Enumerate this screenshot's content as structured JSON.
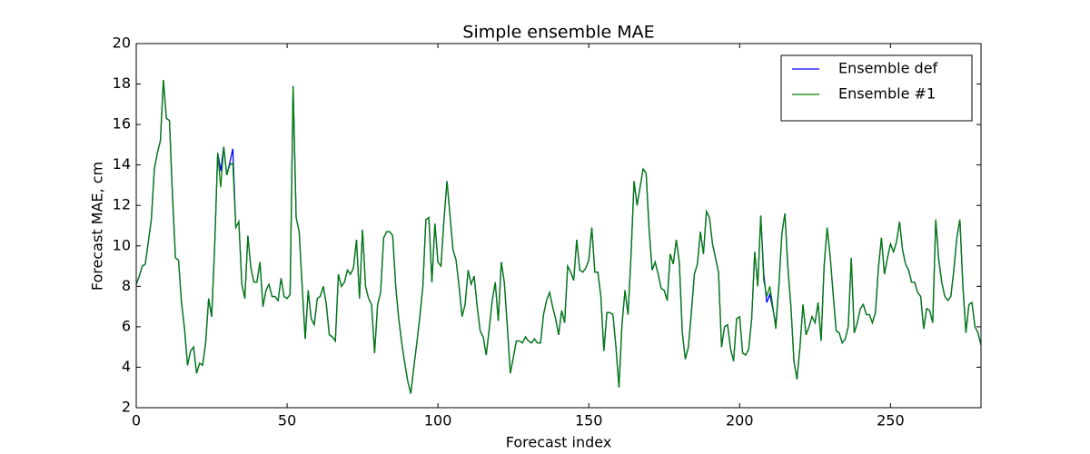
{
  "chart_data": {
    "type": "line",
    "title": "Simple ensemble MAE",
    "xlabel": "Forecast index",
    "ylabel": "Forecast MAE, cm",
    "x": [
      0,
      1,
      2,
      3,
      4,
      5,
      6,
      7,
      8,
      9,
      10,
      11,
      12,
      13,
      14,
      15,
      16,
      17,
      18,
      19,
      20,
      21,
      22,
      23,
      24,
      25,
      26,
      27,
      28,
      29,
      30,
      31,
      32,
      33,
      34,
      35,
      36,
      37,
      38,
      39,
      40,
      41,
      42,
      43,
      44,
      45,
      46,
      47,
      48,
      49,
      50,
      51,
      52,
      53,
      54,
      55,
      56,
      57,
      58,
      59,
      60,
      61,
      62,
      63,
      64,
      65,
      66,
      67,
      68,
      69,
      70,
      71,
      72,
      73,
      74,
      75,
      76,
      77,
      78,
      79,
      80,
      81,
      82,
      83,
      84,
      85,
      86,
      87,
      88,
      89,
      90,
      91,
      92,
      93,
      94,
      95,
      96,
      97,
      98,
      99,
      100,
      101,
      102,
      103,
      104,
      105,
      106,
      107,
      108,
      109,
      110,
      111,
      112,
      113,
      114,
      115,
      116,
      117,
      118,
      119,
      120,
      121,
      122,
      123,
      124,
      125,
      126,
      127,
      128,
      129,
      130,
      131,
      132,
      133,
      134,
      135,
      136,
      137,
      138,
      139,
      140,
      141,
      142,
      143,
      144,
      145,
      146,
      147,
      148,
      149,
      150,
      151,
      152,
      153,
      154,
      155,
      156,
      157,
      158,
      159,
      160,
      161,
      162,
      163,
      164,
      165,
      166,
      167,
      168,
      169,
      170,
      171,
      172,
      173,
      174,
      175,
      176,
      177,
      178,
      179,
      180,
      181,
      182,
      183,
      184,
      185,
      186,
      187,
      188,
      189,
      190,
      191,
      192,
      193,
      194,
      195,
      196,
      197,
      198,
      199,
      200,
      201,
      202,
      203,
      204,
      205,
      206,
      207,
      208,
      209,
      210,
      211,
      212,
      213,
      214,
      215,
      216,
      217,
      218,
      219,
      220,
      221,
      222,
      223,
      224,
      225,
      226,
      227,
      228,
      229,
      230,
      231,
      232,
      233,
      234,
      235,
      236,
      237,
      238,
      239,
      240,
      241,
      242,
      243,
      244,
      245,
      246,
      247,
      248,
      249,
      250,
      251,
      252,
      253,
      254,
      255,
      256,
      257,
      258,
      259,
      260,
      261,
      262,
      263,
      264,
      265,
      266,
      267,
      268,
      269,
      270,
      271,
      272,
      273,
      274,
      275,
      276,
      277,
      278,
      279,
      280
    ],
    "series": [
      {
        "name": "Ensemble def",
        "color": "#0000ff",
        "values": [
          8.1,
          8.5,
          9.0,
          9.1,
          10.2,
          11.3,
          13.8,
          14.6,
          15.2,
          18.2,
          16.3,
          16.2,
          12.5,
          9.4,
          9.3,
          7.2,
          5.9,
          4.1,
          4.8,
          5.0,
          3.7,
          4.2,
          4.1,
          5.2,
          7.4,
          6.5,
          10.0,
          14.6,
          13.7,
          14.9,
          13.5,
          14.1,
          14.8,
          10.9,
          11.2,
          8.1,
          7.4,
          10.5,
          8.9,
          8.2,
          8.2,
          9.2,
          7.0,
          7.8,
          8.1,
          7.5,
          7.5,
          7.3,
          8.4,
          7.5,
          7.4,
          7.6,
          17.9,
          11.4,
          10.7,
          8.0,
          5.4,
          7.8,
          6.4,
          6.1,
          7.4,
          7.5,
          8.0,
          7.1,
          5.6,
          5.5,
          5.3,
          8.6,
          8.0,
          8.2,
          8.8,
          8.6,
          8.9,
          10.3,
          7.4,
          10.8,
          8.0,
          7.4,
          7.1,
          4.7,
          7.1,
          7.7,
          10.4,
          10.7,
          10.7,
          10.5,
          8.0,
          6.4,
          5.2,
          4.2,
          3.3,
          2.7,
          4.0,
          5.2,
          6.5,
          8.0,
          11.3,
          11.4,
          8.2,
          11.1,
          9.2,
          9.0,
          11.3,
          13.2,
          11.5,
          9.8,
          9.3,
          8.0,
          6.5,
          7.1,
          8.8,
          8.1,
          8.5,
          7.0,
          5.8,
          5.5,
          4.6,
          5.9,
          7.3,
          8.2,
          6.3,
          9.2,
          8.2,
          6.0,
          3.7,
          4.5,
          5.3,
          5.3,
          5.2,
          5.5,
          5.3,
          5.2,
          5.4,
          5.2,
          5.2,
          6.6,
          7.3,
          7.7,
          7.0,
          6.4,
          5.6,
          6.8,
          6.2,
          9.0,
          8.7,
          8.3,
          10.3,
          8.8,
          8.7,
          8.9,
          9.3,
          10.9,
          8.7,
          8.7,
          7.5,
          4.8,
          6.7,
          6.7,
          6.6,
          5.0,
          3.0,
          6.1,
          7.8,
          6.6,
          9.5,
          13.2,
          12.0,
          12.9,
          13.8,
          13.6,
          10.8,
          8.8,
          9.2,
          8.6,
          7.9,
          7.8,
          7.3,
          9.6,
          9.1,
          10.3,
          9.2,
          5.7,
          4.4,
          5.0,
          6.7,
          8.6,
          9.1,
          10.7,
          9.6,
          11.7,
          11.4,
          10.1,
          9.4,
          8.7,
          5.0,
          6.0,
          6.1,
          4.9,
          4.3,
          6.4,
          6.5,
          4.7,
          4.6,
          4.9,
          6.4,
          9.7,
          8.0,
          11.5,
          8.6,
          7.2,
          7.6,
          6.9,
          6.1,
          8.0,
          10.6,
          11.6,
          8.9,
          7.0,
          4.3,
          3.4,
          5.0,
          7.1,
          5.6,
          6.0,
          6.5,
          6.2,
          7.2,
          5.3,
          9.0,
          10.9,
          9.5,
          7.6,
          5.8,
          5.7,
          5.2,
          5.4,
          6.0,
          9.4,
          5.7,
          6.2,
          6.9,
          7.1,
          6.6,
          6.6,
          6.2,
          6.7,
          8.9,
          10.4,
          8.6,
          9.4,
          10.1,
          9.7,
          10.2,
          11.2,
          9.8,
          9.1,
          8.8,
          8.2,
          8.2,
          7.7,
          7.5,
          5.9,
          6.9,
          6.8,
          6.2,
          11.3,
          9.3,
          8.2,
          7.5,
          7.3,
          7.5,
          8.8,
          10.4,
          11.3,
          8.0,
          5.7,
          7.1,
          7.2,
          6.0,
          5.7,
          5.1
        ]
      },
      {
        "name": "Ensemble #1",
        "color": "#008000",
        "values": [
          8.1,
          8.5,
          9.0,
          9.1,
          10.2,
          11.3,
          13.8,
          14.6,
          15.2,
          18.2,
          16.3,
          16.2,
          12.5,
          9.4,
          9.3,
          7.2,
          5.9,
          4.1,
          4.8,
          5.0,
          3.7,
          4.2,
          4.1,
          5.2,
          7.4,
          6.5,
          10.0,
          14.6,
          12.9,
          14.9,
          13.5,
          14.0,
          14.1,
          10.9,
          11.2,
          8.1,
          7.4,
          10.5,
          8.9,
          8.2,
          8.2,
          9.2,
          7.0,
          7.8,
          8.1,
          7.5,
          7.5,
          7.3,
          8.4,
          7.5,
          7.4,
          7.6,
          17.9,
          11.4,
          10.7,
          8.0,
          5.4,
          7.8,
          6.4,
          6.1,
          7.4,
          7.5,
          8.0,
          7.1,
          5.6,
          5.5,
          5.3,
          8.6,
          8.0,
          8.2,
          8.8,
          8.6,
          8.9,
          10.3,
          7.4,
          10.8,
          8.0,
          7.4,
          7.1,
          4.7,
          7.1,
          7.7,
          10.4,
          10.7,
          10.7,
          10.5,
          8.0,
          6.4,
          5.2,
          4.2,
          3.3,
          2.7,
          4.0,
          5.2,
          6.5,
          8.0,
          11.3,
          11.4,
          8.2,
          11.1,
          9.2,
          9.0,
          11.3,
          13.2,
          11.5,
          9.8,
          9.3,
          8.0,
          6.5,
          7.1,
          8.8,
          8.1,
          8.5,
          7.0,
          5.8,
          5.5,
          4.6,
          5.9,
          7.3,
          8.2,
          6.3,
          9.2,
          8.2,
          6.0,
          3.7,
          4.5,
          5.3,
          5.3,
          5.2,
          5.5,
          5.3,
          5.2,
          5.4,
          5.2,
          5.2,
          6.6,
          7.3,
          7.7,
          7.0,
          6.4,
          5.6,
          6.8,
          6.2,
          9.0,
          8.7,
          8.3,
          10.3,
          8.8,
          8.7,
          8.9,
          9.3,
          10.9,
          8.7,
          8.7,
          7.5,
          4.8,
          6.7,
          6.7,
          6.6,
          5.0,
          3.0,
          6.1,
          7.8,
          6.6,
          9.5,
          13.2,
          12.0,
          12.9,
          13.8,
          13.6,
          10.8,
          8.8,
          9.2,
          8.6,
          7.9,
          7.8,
          7.3,
          9.6,
          9.1,
          10.3,
          9.2,
          5.7,
          4.4,
          5.0,
          6.7,
          8.6,
          9.1,
          10.7,
          9.6,
          11.7,
          11.4,
          10.1,
          9.4,
          8.7,
          5.0,
          6.0,
          6.1,
          4.9,
          4.3,
          6.4,
          6.5,
          4.7,
          4.6,
          4.9,
          6.4,
          9.7,
          8.0,
          11.5,
          8.3,
          7.5,
          8.0,
          7.0,
          5.9,
          8.0,
          10.6,
          11.6,
          8.9,
          7.0,
          4.3,
          3.4,
          5.0,
          7.1,
          5.6,
          6.0,
          6.5,
          6.2,
          7.2,
          5.3,
          9.0,
          10.9,
          9.5,
          7.6,
          5.8,
          5.7,
          5.2,
          5.4,
          6.0,
          9.4,
          5.7,
          6.2,
          6.9,
          7.1,
          6.6,
          6.6,
          6.2,
          6.7,
          8.9,
          10.4,
          8.6,
          9.4,
          10.1,
          9.7,
          10.2,
          11.2,
          9.8,
          9.1,
          8.8,
          8.2,
          8.2,
          7.7,
          7.5,
          5.9,
          6.9,
          6.8,
          6.2,
          11.3,
          9.3,
          8.2,
          7.5,
          7.3,
          7.5,
          8.8,
          10.4,
          11.3,
          8.0,
          5.7,
          7.1,
          7.2,
          6.0,
          5.7,
          5.1
        ]
      }
    ],
    "xlim": [
      0,
      280
    ],
    "xticks": [
      0,
      50,
      100,
      150,
      200,
      250
    ],
    "ylim": [
      2,
      20
    ],
    "yticks": [
      2,
      4,
      6,
      8,
      10,
      12,
      14,
      16,
      18,
      20
    ],
    "grid": false,
    "legend": "upper right"
  }
}
